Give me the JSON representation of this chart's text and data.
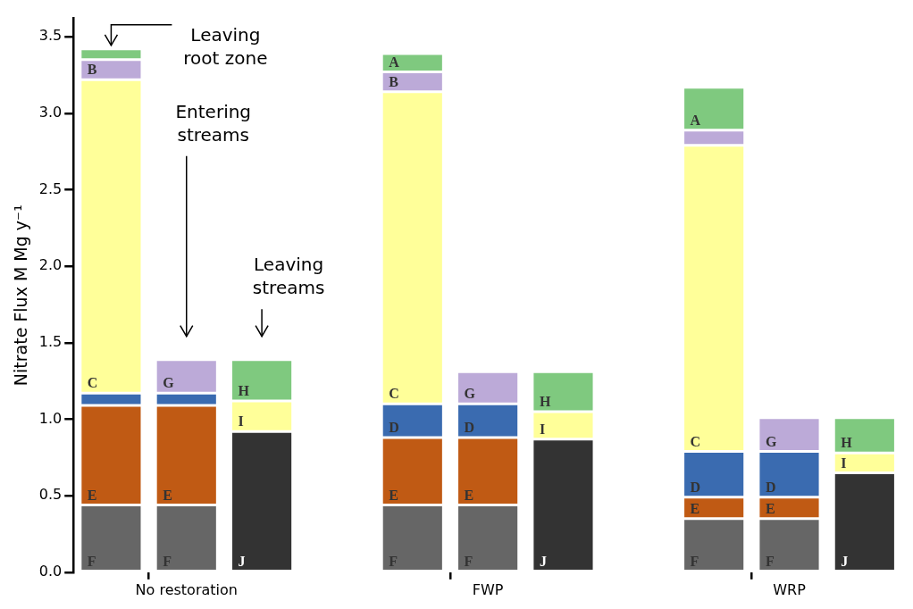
{
  "chart_data": {
    "type": "bar",
    "stacked": true,
    "ylabel": "Nitrate Flux M Mg y⁻¹",
    "categories": [
      null,
      "No restoration",
      null,
      null,
      null,
      "FWP",
      null,
      null,
      null,
      "WRP",
      null
    ],
    "ylim": [
      0,
      3.62
    ],
    "yticks": [
      {
        "value": 0,
        "label": "0.0"
      },
      {
        "value": 0.5,
        "label": "0.5"
      },
      {
        "value": 1,
        "label": "1.0"
      },
      {
        "value": 1.5,
        "label": "1.5"
      },
      {
        "value": 2,
        "label": "2.0"
      },
      {
        "value": 2.5,
        "label": "2.5"
      },
      {
        "value": 3,
        "label": "3.0"
      },
      {
        "value": 3.5,
        "label": "3.5"
      }
    ],
    "grid": false,
    "annotations": [
      "Leaving root zone",
      "Entering streams",
      "Leaving streams"
    ],
    "series": [
      {
        "values": [
          0.44,
          0.44,
          0.92,
          null,
          0.44,
          0.44,
          0.87,
          null,
          0.35,
          0.35,
          0.65
        ],
        "colors": [
          "#666666",
          "#666666",
          "#333333",
          null,
          "#666666",
          "#666666",
          "#333333",
          null,
          "#666666",
          "#666666",
          "#333333"
        ],
        "value_labels": [
          "F",
          "F",
          "J",
          null,
          "F",
          "F",
          "J",
          null,
          "F",
          "F",
          "J"
        ]
      },
      {
        "values": [
          0.65,
          0.65,
          0.2,
          null,
          0.44,
          0.44,
          0.18,
          null,
          0.14,
          0.14,
          0.13
        ],
        "colors": [
          "#c05a14",
          "#c05a14",
          "#ffff99",
          null,
          "#c05a14",
          "#c05a14",
          "#ffff99",
          null,
          "#c05a14",
          "#c05a14",
          "#ffff99"
        ],
        "value_labels": [
          "E",
          "E",
          "I",
          null,
          "E",
          "E",
          "I",
          null,
          "E",
          "E",
          "I"
        ]
      },
      {
        "values": [
          0.08,
          0.08,
          0.27,
          null,
          0.22,
          0.22,
          0.26,
          null,
          0.3,
          0.3,
          0.23
        ],
        "colors": [
          "#3a6bb0",
          "#3a6bb0",
          "#7fc97f",
          null,
          "#3a6bb0",
          "#3a6bb0",
          "#7fc97f",
          null,
          "#3a6bb0",
          "#3a6bb0",
          "#7fc97f"
        ],
        "value_labels": [
          null,
          null,
          "H",
          null,
          "D",
          "D",
          "H",
          null,
          "D",
          "D",
          "H"
        ]
      },
      {
        "values": [
          2.05,
          0.22,
          null,
          null,
          2.04,
          0.21,
          null,
          null,
          2.0,
          0.22,
          null
        ],
        "colors": [
          "#ffff99",
          "#bcaad8",
          null,
          null,
          "#ffff99",
          "#bcaad8",
          null,
          null,
          "#ffff99",
          "#bcaad8",
          null
        ],
        "value_labels": [
          "C",
          "G",
          null,
          null,
          "C",
          "G",
          null,
          null,
          "C",
          "G",
          null
        ]
      },
      {
        "values": [
          0.13,
          null,
          null,
          null,
          0.13,
          null,
          null,
          null,
          0.1,
          null,
          null
        ],
        "colors": [
          "#bcaad8",
          null,
          null,
          null,
          "#bcaad8",
          null,
          null,
          null,
          "#bcaad8",
          null,
          null
        ],
        "value_labels": [
          "B",
          null,
          null,
          null,
          "B",
          null,
          null,
          null,
          null,
          null,
          null
        ]
      },
      {
        "values": [
          0.07,
          null,
          null,
          null,
          0.12,
          null,
          null,
          null,
          0.28,
          null,
          null
        ],
        "colors": [
          "#7fc97f",
          null,
          null,
          null,
          "#7fc97f",
          null,
          null,
          null,
          "#7fc97f",
          null,
          null
        ],
        "value_labels": [
          null,
          null,
          null,
          null,
          "A",
          null,
          null,
          null,
          "A",
          null,
          null
        ]
      }
    ]
  }
}
